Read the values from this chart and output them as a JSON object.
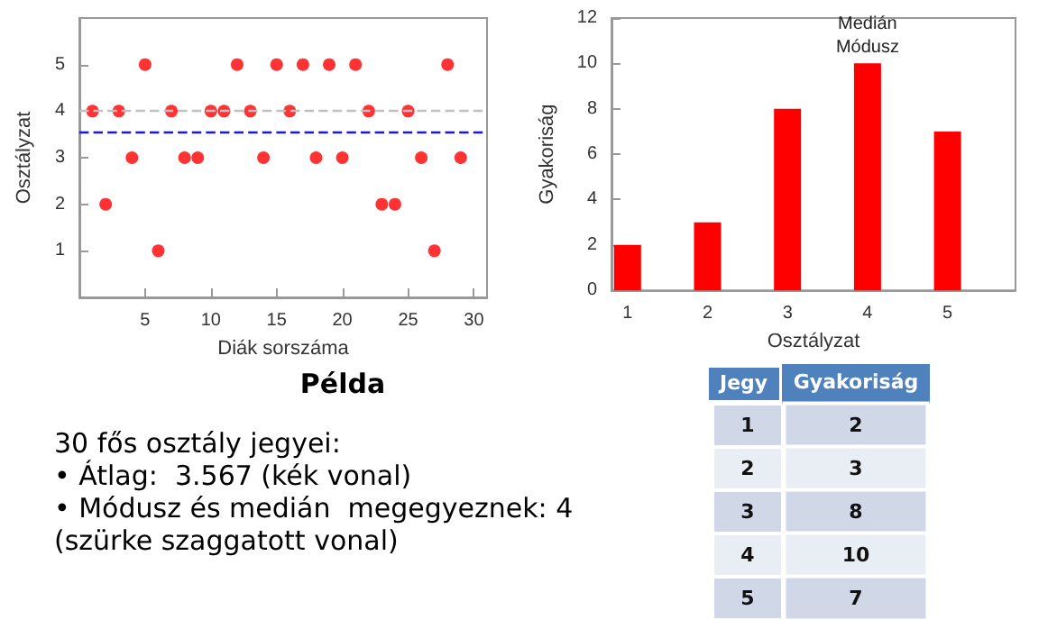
{
  "chart_data": [
    {
      "type": "scatter",
      "xlabel": "Diák sorszáma",
      "ylabel": "Osztályzat",
      "x": [
        1,
        2,
        3,
        4,
        5,
        6,
        7,
        8,
        9,
        10,
        11,
        12,
        13,
        14,
        15,
        16,
        17,
        18,
        19,
        20,
        21,
        22,
        23,
        24,
        25,
        26,
        27,
        28,
        29
      ],
      "values": [
        4,
        2,
        4,
        3,
        5,
        1,
        4,
        3,
        3,
        4,
        4,
        5,
        4,
        3,
        5,
        4,
        5,
        3,
        5,
        3,
        5,
        4,
        2,
        2,
        4,
        3,
        1,
        5,
        3
      ],
      "color": "#ff0000",
      "marker": "circle",
      "xlim": [
        0,
        31
      ],
      "xticks": [
        5,
        10,
        15,
        20,
        25,
        30
      ],
      "ylim": [
        0,
        6
      ],
      "yticks": [
        1,
        2,
        3,
        4,
        5
      ],
      "grid": false,
      "ref_lines": [
        {
          "axis": "y",
          "value": 4,
          "color": "#c0c0c0",
          "line_style": "dashed"
        },
        {
          "axis": "y",
          "value": 3.567,
          "color": "#1a1acc",
          "line_style": "dashed"
        }
      ]
    },
    {
      "type": "bar",
      "xlabel": "Osztályzat",
      "ylabel": "Gyakoriság",
      "x": [
        1,
        2,
        3,
        4,
        5
      ],
      "values": [
        2,
        3,
        8,
        10,
        7
      ],
      "color": "#ff0000",
      "xlim": [
        0.8,
        5.85
      ],
      "xticks": [
        1,
        2,
        3,
        4,
        5
      ],
      "ylim": [
        0,
        12
      ],
      "yticks": [
        0,
        2,
        4,
        6,
        8,
        10,
        12
      ],
      "grid": false,
      "annotations": [
        {
          "text": "Medián\nMódusz",
          "x": 4,
          "y": 10
        }
      ]
    },
    {
      "type": "other",
      "title": "Példa",
      "annotations": [
        "30 fős osztály jegyei:",
        "• Átlag:  3.567 (kék vonal)",
        "• Módusz és medián  megegyeznek: 4",
        "(szürke szaggatott vonal)"
      ]
    },
    {
      "type": "heatmap",
      "ylabel": "Jegy",
      "categories": [
        "Gyakoriság"
      ],
      "y_categories": [
        "1",
        "2",
        "3",
        "4",
        "5"
      ],
      "cells": [
        [
          2
        ],
        [
          3
        ],
        [
          8
        ],
        [
          10
        ],
        [
          7
        ]
      ],
      "data_labels": true
    }
  ]
}
